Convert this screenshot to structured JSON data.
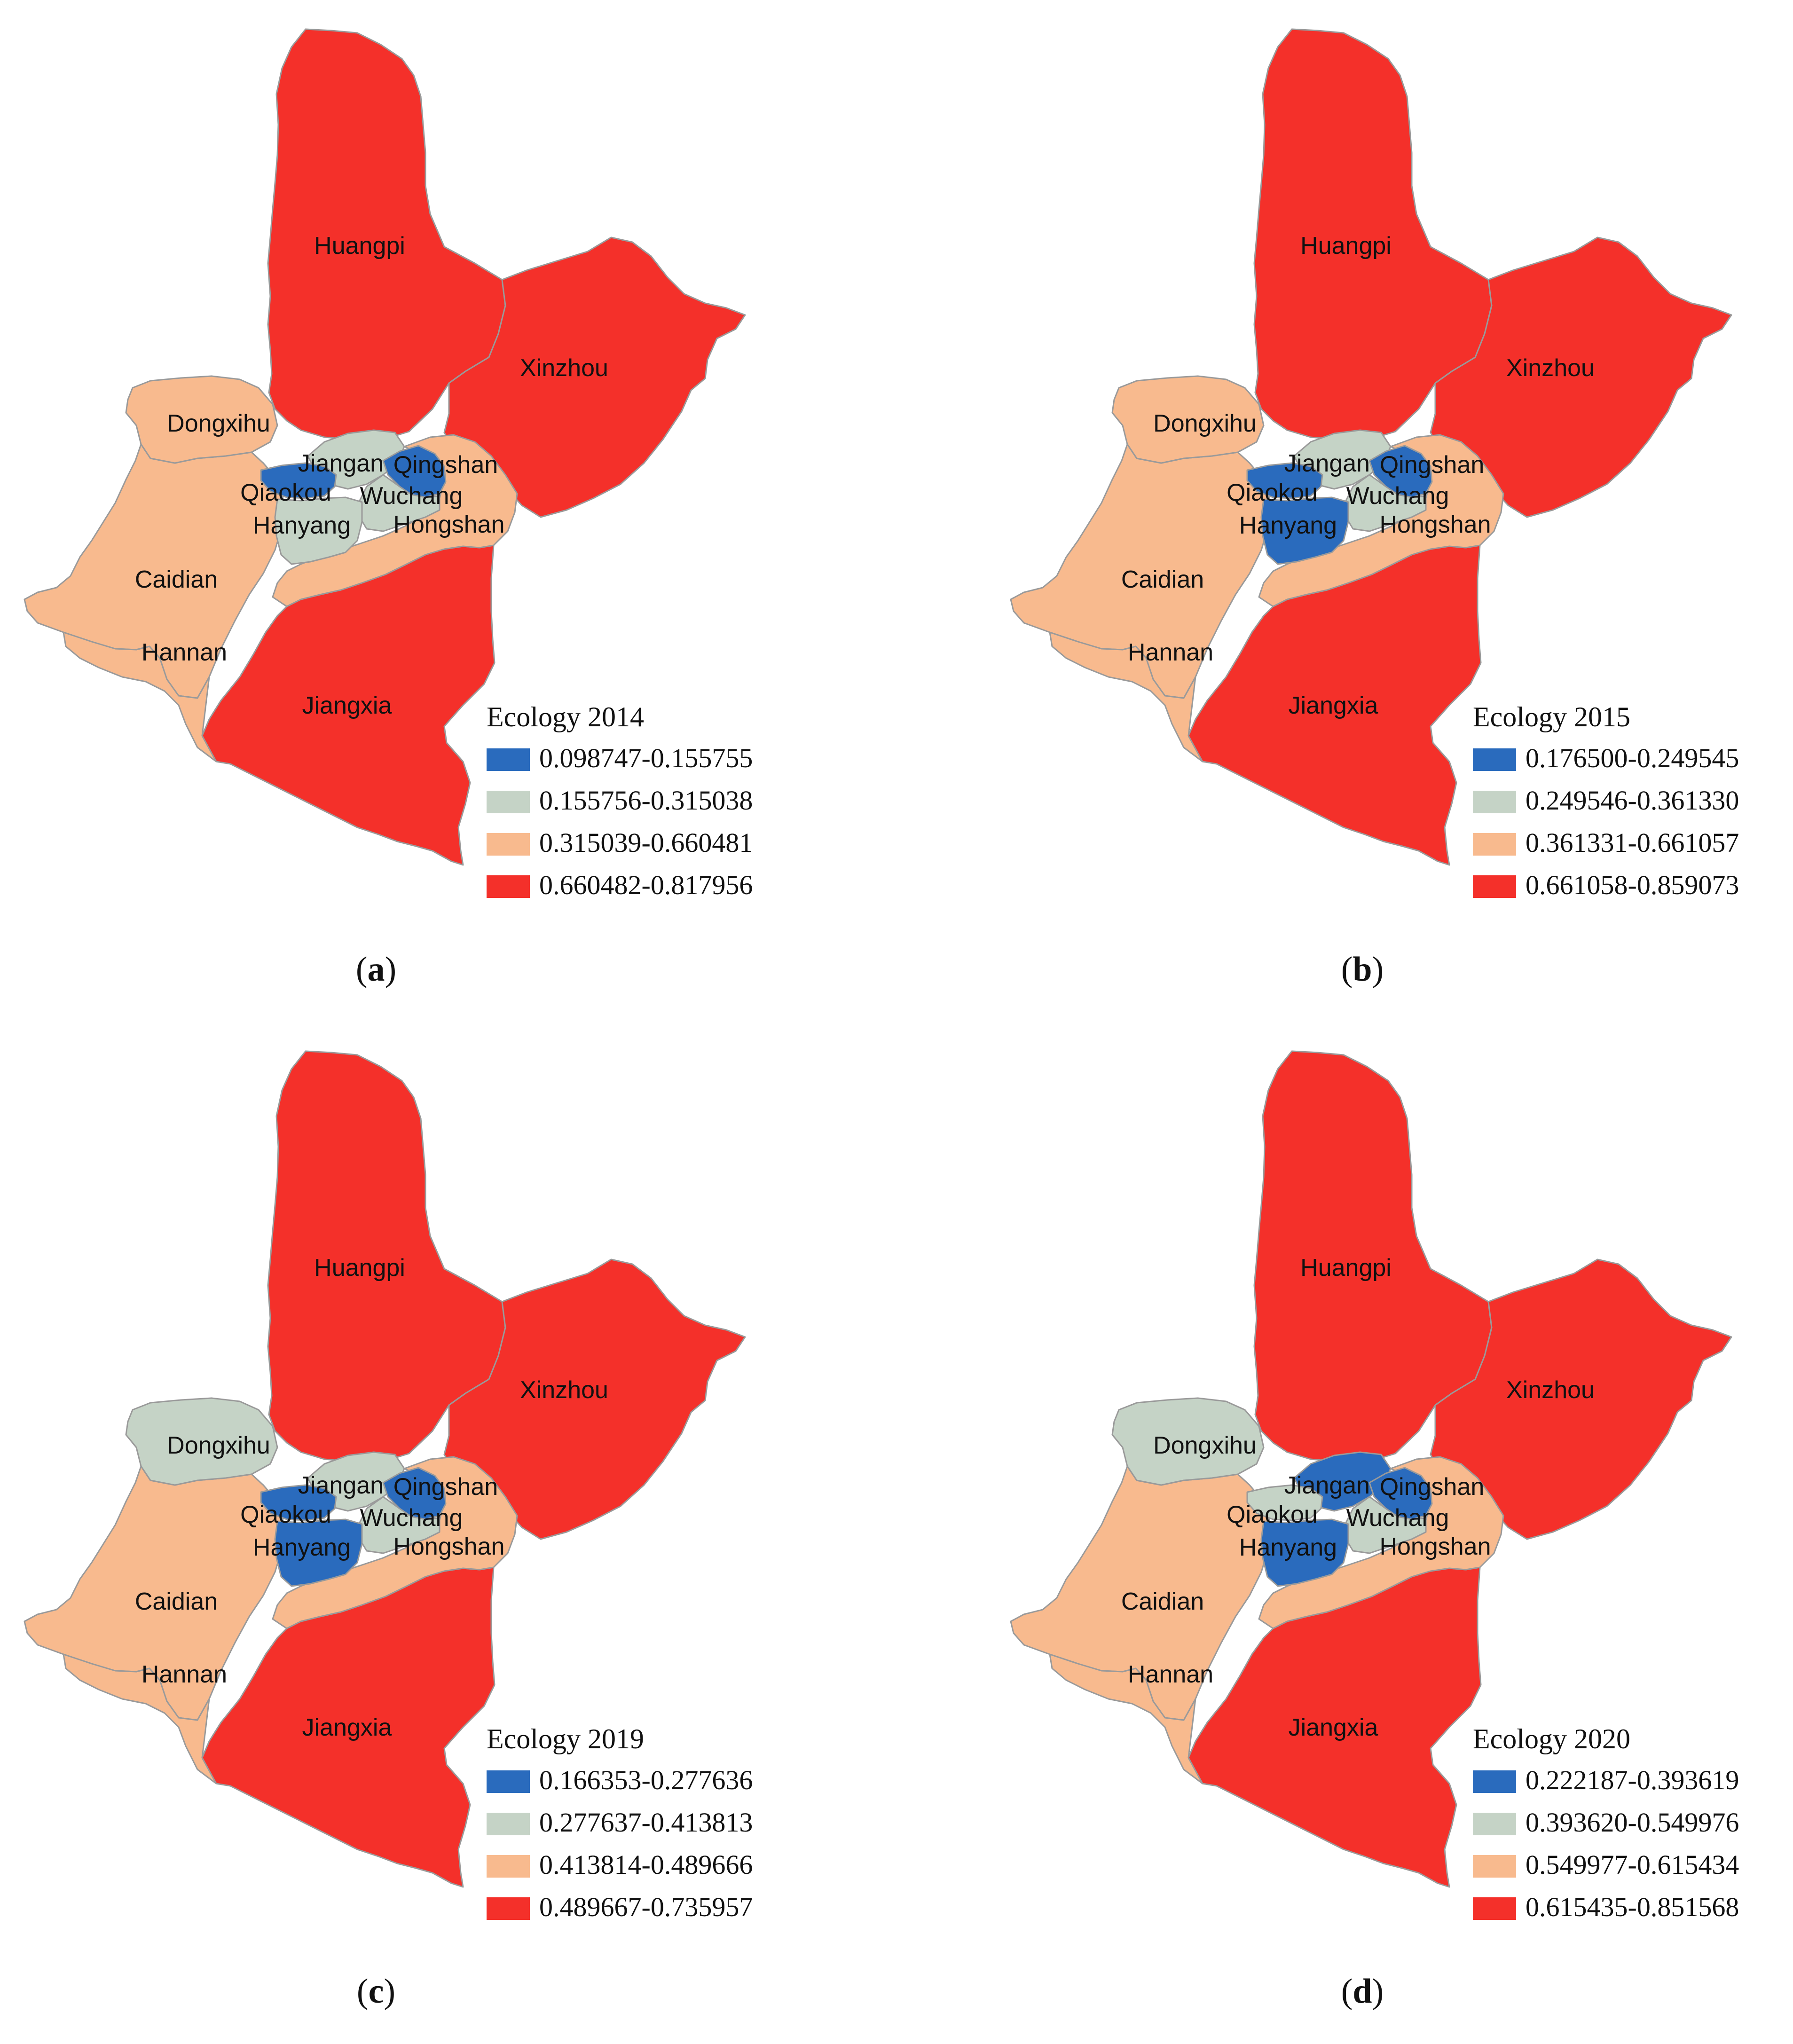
{
  "colors": {
    "class1": "#2a6bbd",
    "class2": "#c5d3c6",
    "class3": "#f8ba8e",
    "class4": "#f4302a"
  },
  "district_names": {
    "huangpi": "Huangpi",
    "xinzhou": "Xinzhou",
    "dongxihu": "Dongxihu",
    "jiangan": "Jiangan",
    "qingshan": "Qingshan",
    "qiaokou": "Qiaokou",
    "wuchang": "Wuchang",
    "hanyang": "Hanyang",
    "hongshan": "Hongshan",
    "caidian": "Caidian",
    "hannan": "Hannan",
    "jiangxia": "Jiangxia"
  },
  "panels": [
    {
      "caption": "a",
      "legend_title": "Ecology 2014",
      "legend": [
        "0.098747-0.155755",
        "0.155756-0.315038",
        "0.315039-0.660481",
        "0.660482-0.817956"
      ],
      "classes": {
        "huangpi": 4,
        "xinzhou": 4,
        "jiangxia": 4,
        "dongxihu": 3,
        "caidian": 3,
        "hannan": 3,
        "hongshan": 3,
        "jiangan": 2,
        "wuchang": 2,
        "hanyang": 2,
        "qiaokou": 1,
        "qingshan": 1
      }
    },
    {
      "caption": "b",
      "legend_title": "Ecology 2015",
      "legend": [
        "0.176500-0.249545",
        "0.249546-0.361330",
        "0.361331-0.661057",
        "0.661058-0.859073"
      ],
      "classes": {
        "huangpi": 4,
        "xinzhou": 4,
        "jiangxia": 4,
        "dongxihu": 3,
        "caidian": 3,
        "hannan": 3,
        "hongshan": 3,
        "jiangan": 2,
        "wuchang": 2,
        "qiaokou": 1,
        "hanyang": 1,
        "qingshan": 1
      }
    },
    {
      "caption": "c",
      "legend_title": "Ecology 2019",
      "legend": [
        "0.166353-0.277636",
        "0.277637-0.413813",
        "0.413814-0.489666",
        "0.489667-0.735957"
      ],
      "classes": {
        "huangpi": 4,
        "xinzhou": 4,
        "jiangxia": 4,
        "caidian": 3,
        "hannan": 3,
        "hongshan": 3,
        "dongxihu": 2,
        "jiangan": 2,
        "wuchang": 2,
        "qiaokou": 1,
        "hanyang": 1,
        "qingshan": 1
      }
    },
    {
      "caption": "d",
      "legend_title": "Ecology 2020",
      "legend": [
        "0.222187-0.393619",
        "0.393620-0.549976",
        "0.549977-0.615434",
        "0.615435-0.851568"
      ],
      "classes": {
        "huangpi": 4,
        "xinzhou": 4,
        "jiangxia": 4,
        "caidian": 3,
        "hannan": 3,
        "hongshan": 3,
        "dongxihu": 2,
        "qiaokou": 2,
        "wuchang": 2,
        "jiangan": 1,
        "hanyang": 1,
        "qingshan": 1
      }
    }
  ]
}
